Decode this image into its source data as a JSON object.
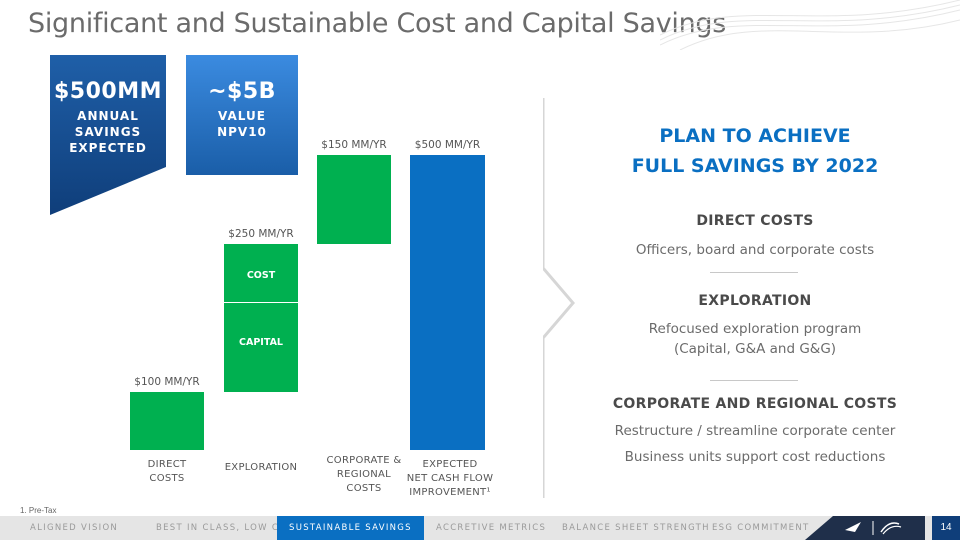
{
  "title": "Significant and Sustainable Cost and Capital Savings",
  "badges": {
    "annual": {
      "value": "$500MM",
      "line1": "ANNUAL",
      "line2": "SAVINGS",
      "line3": "EXPECTED"
    },
    "npv": {
      "value": "~$5B",
      "line1": "VALUE",
      "line2": "NPV10"
    }
  },
  "chart_data": {
    "type": "bar",
    "subtype": "waterfall",
    "categories": [
      "DIRECT COSTS",
      "EXPLORATION",
      "CORPORATE & REGIONAL COSTS",
      "EXPECTED NET CASH FLOW IMPROVEMENT¹"
    ],
    "values": [
      100,
      250,
      150,
      500
    ],
    "value_labels": [
      "$100 MM/YR",
      "$250 MM/YR",
      "$150 MM/YR",
      "$500 MM/YR"
    ],
    "exploration_segments": [
      "COST",
      "CAPITAL"
    ],
    "colors": {
      "increment": "#00b050",
      "total": "#0a6fc2"
    },
    "ylim": [
      0,
      500
    ]
  },
  "categories_text": {
    "c1": [
      "DIRECT",
      "COSTS"
    ],
    "c2": [
      "EXPLORATION"
    ],
    "c3": [
      "CORPORATE &",
      "REGIONAL",
      "COSTS"
    ],
    "c4": [
      "EXPECTED",
      "NET CASH FLOW",
      "IMPROVEMENT¹"
    ]
  },
  "right_panel": {
    "heading_line1": "PLAN TO ACHIEVE",
    "heading_line2": "FULL SAVINGS BY 2022",
    "sections": [
      {
        "title": "DIRECT COSTS",
        "lines": [
          "Officers, board and corporate costs"
        ]
      },
      {
        "title": "EXPLORATION",
        "lines": [
          "Refocused exploration program",
          "(Capital, G&A and G&G)"
        ]
      },
      {
        "title": "CORPORATE AND REGIONAL COSTS",
        "lines": [
          "Restructure / streamline corporate center",
          "Business units support cost reductions"
        ]
      }
    ]
  },
  "footnote": "1. Pre-Tax",
  "nav": {
    "items": [
      "ALIGNED VISION",
      "BEST IN CLASS, LOW CoS",
      "SUSTAINABLE SAVINGS",
      "ACCRETIVE METRICS",
      "BALANCE SHEET STRENGTH",
      "ESG COMMITMENT"
    ],
    "active": "SUSTAINABLE SAVINGS",
    "page": "14"
  },
  "colors": {
    "brand_blue": "#0a6fc2",
    "dark_blue": "#0f3e7a",
    "green": "#00b050"
  }
}
